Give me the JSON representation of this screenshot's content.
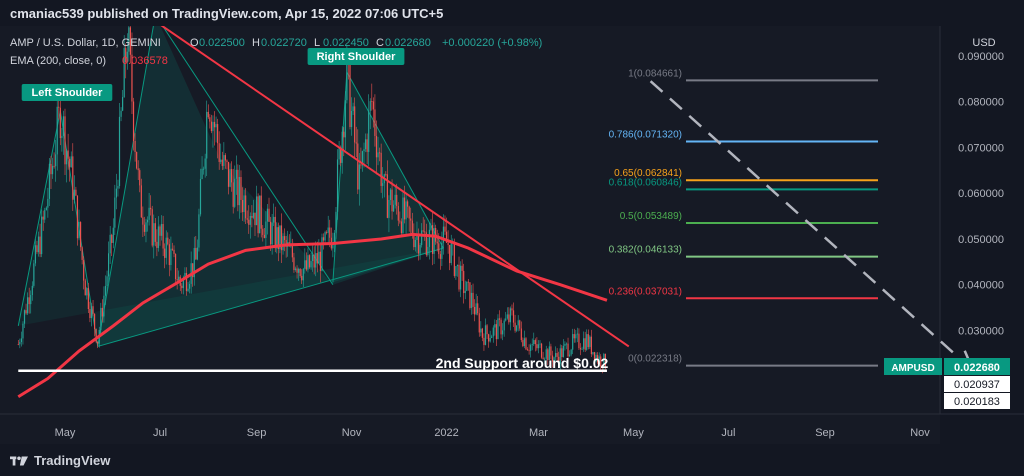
{
  "header": {
    "published": "cmaniac539 published on TradingView.com, Apr 15, 2022 07:06 UTC+5"
  },
  "legend": {
    "symbol_line": "AMP / U.S. Dollar, 1D, GEMINI",
    "ohlc": [
      {
        "k": "O",
        "v": "0.022500"
      },
      {
        "k": "H",
        "v": "0.022720"
      },
      {
        "k": "L",
        "v": "0.022450"
      },
      {
        "k": "C",
        "v": "0.022680"
      }
    ],
    "change": "+0.000220 (+0.98%)",
    "ema_label": "EMA (200, close, 0)",
    "ema_value": "0.036578",
    "ohlc_color": "#26a69a",
    "ema_color": "#f23645"
  },
  "annotations": {
    "left_shoulder": "Left Shoulder",
    "right_shoulder": "Right Shoulder",
    "support": "2nd Support around $0.02",
    "label_bg": "#089981"
  },
  "footer": {
    "brand": "TradingView"
  },
  "chart_data": {
    "type": "candlestick",
    "title": "AMP / U.S. Dollar, 1D, GEMINI",
    "ylabel": "USD",
    "ylim": [
      0.0155,
      0.0955
    ],
    "y_ticks": [
      "0.090000",
      "0.080000",
      "0.070000",
      "0.060000",
      "0.050000",
      "0.040000",
      "0.030000"
    ],
    "y_tick_values": [
      0.09,
      0.08,
      0.07,
      0.06,
      0.05,
      0.04,
      0.03
    ],
    "x_ticks": [
      "May",
      "Jul",
      "Sep",
      "Nov",
      "2022",
      "Mar",
      "May",
      "Jul",
      "Sep",
      "Nov"
    ],
    "price_close_path": [
      [
        "2021-04-01",
        0.027
      ],
      [
        "2021-04-18",
        0.055
      ],
      [
        "2021-04-28",
        0.078
      ],
      [
        "2021-05-06",
        0.062
      ],
      [
        "2021-05-14",
        0.04
      ],
      [
        "2021-05-22",
        0.028
      ],
      [
        "2021-06-01",
        0.052
      ],
      [
        "2021-06-10",
        0.095
      ],
      [
        "2021-06-18",
        0.058
      ],
      [
        "2021-06-26",
        0.052
      ],
      [
        "2021-07-06",
        0.048
      ],
      [
        "2021-07-14",
        0.04
      ],
      [
        "2021-07-24",
        0.045
      ],
      [
        "2021-08-01",
        0.082
      ],
      [
        "2021-08-10",
        0.066
      ],
      [
        "2021-08-20",
        0.06
      ],
      [
        "2021-09-01",
        0.056
      ],
      [
        "2021-09-12",
        0.051
      ],
      [
        "2021-09-22",
        0.047
      ],
      [
        "2021-10-02",
        0.043
      ],
      [
        "2021-10-12",
        0.046
      ],
      [
        "2021-10-20",
        0.052
      ],
      [
        "2021-10-29",
        0.086
      ],
      [
        "2021-11-06",
        0.062
      ],
      [
        "2021-11-14",
        0.08
      ],
      [
        "2021-11-22",
        0.06
      ],
      [
        "2021-12-02",
        0.056
      ],
      [
        "2021-12-12",
        0.051
      ],
      [
        "2021-12-22",
        0.05
      ],
      [
        "2022-01-02",
        0.049
      ],
      [
        "2022-01-10",
        0.041
      ],
      [
        "2022-01-18",
        0.036
      ],
      [
        "2022-01-24",
        0.029
      ],
      [
        "2022-02-02",
        0.03
      ],
      [
        "2022-02-12",
        0.033
      ],
      [
        "2022-02-22",
        0.027
      ],
      [
        "2022-03-02",
        0.026
      ],
      [
        "2022-03-12",
        0.024
      ],
      [
        "2022-03-22",
        0.027
      ],
      [
        "2022-04-01",
        0.028
      ],
      [
        "2022-04-08",
        0.024
      ],
      [
        "2022-04-14",
        0.0227
      ]
    ],
    "series": [
      {
        "name": "EMA (200, close, 0)",
        "color": "#f23645",
        "values": [
          [
            "2021-04-01",
            0.0155
          ],
          [
            "2021-04-20",
            0.0195
          ],
          [
            "2021-05-10",
            0.0255
          ],
          [
            "2021-06-01",
            0.031
          ],
          [
            "2021-06-20",
            0.036
          ],
          [
            "2021-07-10",
            0.04
          ],
          [
            "2021-08-01",
            0.0445
          ],
          [
            "2021-08-25",
            0.0475
          ],
          [
            "2021-09-20",
            0.0487
          ],
          [
            "2021-10-20",
            0.049
          ],
          [
            "2021-11-20",
            0.05
          ],
          [
            "2021-12-10",
            0.051
          ],
          [
            "2021-12-25",
            0.0506
          ],
          [
            "2022-01-15",
            0.048
          ],
          [
            "2022-02-15",
            0.043
          ],
          [
            "2022-03-15",
            0.04
          ],
          [
            "2022-04-14",
            0.036578
          ]
        ]
      },
      {
        "name": "Fibonacci",
        "levels": [
          {
            "label": "1(0.084661)",
            "value": 0.084661,
            "color": "#787b86"
          },
          {
            "label": "0.786(0.071320)",
            "value": 0.07132,
            "color": "#64b5f6"
          },
          {
            "label": "0.65(0.062841)",
            "value": 0.062841,
            "color": "#f7a21b"
          },
          {
            "label": "0.618(0.060846)",
            "value": 0.060846,
            "color": "#089981"
          },
          {
            "label": "0.5(0.053489)",
            "value": 0.053489,
            "color": "#4caf50"
          },
          {
            "label": "0.382(0.046133)",
            "value": 0.046133,
            "color": "#81c784"
          },
          {
            "label": "0.236(0.037031)",
            "value": 0.037031,
            "color": "#f23645"
          },
          {
            "label": "0(0.022318)",
            "value": 0.022318,
            "color": "#787b86"
          }
        ]
      }
    ],
    "trendlines": [
      {
        "name": "neckline",
        "from": [
          "2021-05-25",
          0.0255
        ],
        "to": [
          "2021-12-30",
          0.048
        ]
      },
      {
        "name": "descending-resistance",
        "from": [
          "2021-06-22",
          0.099
        ],
        "to": [
          "2022-04-28",
          0.0265
        ]
      },
      {
        "name": "support",
        "from": [
          "2021-04-01",
          0.0212
        ],
        "to": [
          "2022-04-14",
          0.0212
        ]
      },
      {
        "name": "projection",
        "from": [
          "2022-05-12",
          0.0845
        ],
        "to": [
          "2022-12-01",
          0.0225
        ]
      }
    ],
    "price_labels": [
      {
        "label": "AMPUSD",
        "value": "0.022680",
        "bg": "#089981"
      },
      {
        "label": "",
        "value": "0.020937",
        "bg": "#ffffff"
      },
      {
        "label": "",
        "value": "0.020183",
        "bg": "#ffffff"
      }
    ]
  }
}
